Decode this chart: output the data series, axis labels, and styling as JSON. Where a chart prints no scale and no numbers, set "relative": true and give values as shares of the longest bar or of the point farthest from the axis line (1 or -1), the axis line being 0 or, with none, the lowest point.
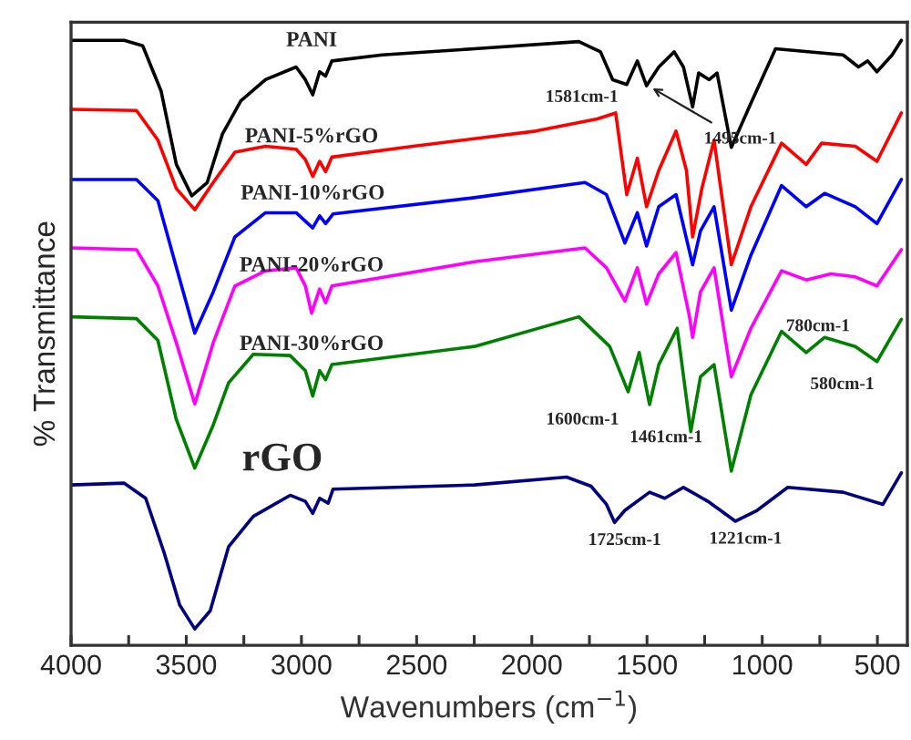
{
  "chart_data": {
    "type": "line",
    "relative": true,
    "xlabel": "Wavenumbers (cm$^{−1}$)",
    "ylabel": "% Transmittance",
    "xlim": [
      4000,
      370
    ],
    "xticks": [
      4000,
      {
        "value": 3750,
        "label": null
      },
      3500,
      {
        "value": 3250,
        "label": null
      },
      3000,
      {
        "value": 2750,
        "label": null
      },
      2500,
      {
        "value": 2250,
        "label": null
      },
      2000,
      {
        "value": 1750,
        "label": null
      },
      1500,
      {
        "value": 1250,
        "label": null
      },
      1000,
      {
        "value": 750,
        "label": null
      },
      500
    ],
    "tick_labels": "x",
    "grid": false,
    "legend": false,
    "series": [
      {
        "name": "PANI",
        "color": "#000000",
        "x": [
          4000,
          3769,
          3689,
          3609,
          3543,
          3476,
          3409,
          3343,
          3263,
          3156,
          3023,
          2983,
          2951,
          2921,
          2895,
          2868,
          2649,
          2249,
          1796,
          1702,
          1649,
          1588,
          1542,
          1502,
          1449,
          1382,
          1342,
          1302,
          1276,
          1230,
          1196,
          1134,
          1049,
          942,
          649,
          582,
          542,
          502,
          436,
          396
        ],
        "values": [
          1.0,
          1.0,
          0.991,
          0.916,
          0.795,
          0.743,
          0.765,
          0.845,
          0.9,
          0.935,
          0.956,
          0.935,
          0.91,
          0.948,
          0.941,
          0.966,
          0.976,
          0.986,
          0.998,
          0.981,
          0.935,
          0.927,
          0.966,
          0.925,
          0.956,
          0.981,
          0.956,
          0.89,
          0.946,
          0.935,
          0.946,
          0.823,
          0.896,
          0.986,
          0.976,
          0.956,
          0.966,
          0.948,
          0.976,
          1.0
        ]
      },
      {
        "name": "PANI-5%rGO",
        "color": "#ff0000",
        "x": [
          4000,
          3716,
          3623,
          3543,
          3463,
          3383,
          3289,
          3156,
          3023,
          2983,
          2951,
          2921,
          2895,
          2868,
          2516,
          1983,
          1716,
          1636,
          1588,
          1542,
          1502,
          1449,
          1374,
          1329,
          1302,
          1262,
          1209,
          1134,
          1049,
          916,
          809,
          742,
          596,
          502,
          396
        ],
        "values": [
          0.886,
          0.884,
          0.835,
          0.755,
          0.72,
          0.765,
          0.815,
          0.825,
          0.82,
          0.803,
          0.775,
          0.8,
          0.783,
          0.807,
          0.825,
          0.85,
          0.87,
          0.88,
          0.745,
          0.805,
          0.725,
          0.785,
          0.85,
          0.785,
          0.675,
          0.755,
          0.835,
          0.629,
          0.725,
          0.83,
          0.795,
          0.83,
          0.825,
          0.8,
          0.88
        ]
      },
      {
        "name": "PANI-10%rGO",
        "color": "#0000ff",
        "x": [
          4000,
          3716,
          3623,
          3543,
          3463,
          3383,
          3289,
          3156,
          3023,
          2951,
          2921,
          2895,
          2863,
          2249,
          1769,
          1676,
          1596,
          1542,
          1502,
          1449,
          1374,
          1302,
          1268,
          1209,
          1134,
          1049,
          916,
          809,
          729,
          596,
          502,
          396
        ],
        "values": [
          0.77,
          0.77,
          0.735,
          0.625,
          0.516,
          0.584,
          0.675,
          0.715,
          0.715,
          0.69,
          0.71,
          0.697,
          0.713,
          0.74,
          0.765,
          0.745,
          0.665,
          0.715,
          0.66,
          0.725,
          0.745,
          0.629,
          0.685,
          0.725,
          0.554,
          0.645,
          0.76,
          0.725,
          0.747,
          0.725,
          0.697,
          0.77
        ]
      },
      {
        "name": "PANI-20%rGO",
        "color": "#ff00ff",
        "x": [
          4000,
          3716,
          3623,
          3543,
          3463,
          3383,
          3289,
          3156,
          3023,
          2983,
          2956,
          2921,
          2895,
          2868,
          2249,
          1769,
          1676,
          1596,
          1542,
          1502,
          1449,
          1374,
          1316,
          1302,
          1268,
          1209,
          1134,
          1049,
          916,
          809,
          702,
          596,
          502,
          396
        ],
        "values": [
          0.657,
          0.654,
          0.594,
          0.5,
          0.399,
          0.5,
          0.594,
          0.619,
          0.624,
          0.594,
          0.549,
          0.589,
          0.566,
          0.594,
          0.634,
          0.657,
          0.624,
          0.569,
          0.624,
          0.564,
          0.614,
          0.649,
          0.544,
          0.509,
          0.584,
          0.624,
          0.444,
          0.524,
          0.619,
          0.604,
          0.614,
          0.609,
          0.594,
          0.654
        ]
      },
      {
        "name": "PANI-30%rGO",
        "color": "#008000",
        "x": [
          4000,
          3716,
          3623,
          3543,
          3463,
          3383,
          3316,
          3209,
          3049,
          2983,
          2951,
          2921,
          2895,
          2868,
          2249,
          1796,
          1662,
          1582,
          1534,
          1489,
          1449,
          1369,
          1310,
          1268,
          1209,
          1134,
          1049,
          916,
          809,
          729,
          596,
          502,
          396
        ],
        "values": [
          0.543,
          0.54,
          0.504,
          0.373,
          0.293,
          0.364,
          0.434,
          0.481,
          0.479,
          0.454,
          0.412,
          0.454,
          0.439,
          0.464,
          0.494,
          0.543,
          0.494,
          0.419,
          0.484,
          0.398,
          0.464,
          0.524,
          0.353,
          0.444,
          0.464,
          0.288,
          0.414,
          0.519,
          0.484,
          0.509,
          0.494,
          0.469,
          0.539
        ]
      },
      {
        "name": "rGO",
        "color": "#000080",
        "x": [
          4000,
          3769,
          3676,
          3596,
          3529,
          3463,
          3396,
          3316,
          3209,
          3049,
          2983,
          2951,
          2921,
          2884,
          2863,
          2249,
          1849,
          1743,
          1676,
          1641,
          1596,
          1489,
          1423,
          1342,
          1236,
          1116,
          1022,
          889,
          649,
          476,
          396
        ],
        "values": [
          0.265,
          0.268,
          0.243,
          0.153,
          0.067,
          0.027,
          0.057,
          0.163,
          0.213,
          0.248,
          0.238,
          0.218,
          0.243,
          0.235,
          0.258,
          0.265,
          0.278,
          0.263,
          0.233,
          0.203,
          0.223,
          0.253,
          0.243,
          0.261,
          0.238,
          0.205,
          0.223,
          0.261,
          0.253,
          0.233,
          0.285
        ]
      }
    ],
    "annotations": [
      {
        "text": "1581cm-1",
        "x": 1581,
        "y": 0.927
      },
      {
        "text": "1495cm-1",
        "x": 1495,
        "y": 0.925
      },
      {
        "text": "1600cm-1",
        "x": 1600,
        "y": 0.419
      },
      {
        "text": "1461cm-1",
        "x": 1461,
        "y": 0.398
      },
      {
        "text": "780cm-1",
        "x": 780,
        "y": 0.484
      },
      {
        "text": "580cm-1",
        "x": 580,
        "y": 0.469
      },
      {
        "text": "1725cm-1",
        "x": 1641,
        "y": 0.203
      },
      {
        "text": "1221cm-1",
        "x": 1116,
        "y": 0.205
      }
    ]
  }
}
